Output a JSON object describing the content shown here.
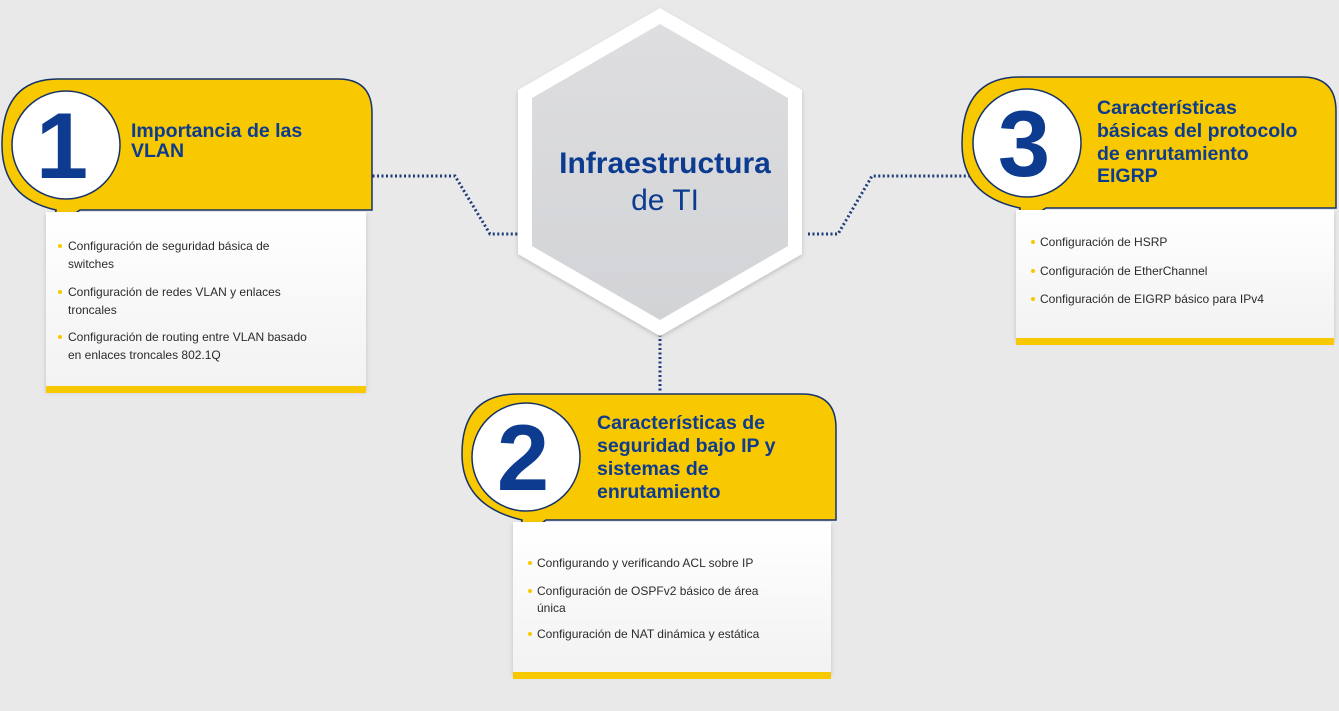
{
  "hub": {
    "title": "Infraestructura",
    "subtitle": "de TI"
  },
  "topics": [
    {
      "number": "1",
      "heading": [
        "Importancia de las",
        "VLAN"
      ],
      "items": [
        [
          "Configuración de seguridad básica de",
          "switches"
        ],
        [
          "Configuración de redes VLAN y enlaces",
          "troncales"
        ],
        [
          "Configuración de routing entre VLAN basado",
          "en enlaces troncales 802.1Q"
        ]
      ]
    },
    {
      "number": "2",
      "heading": [
        "Características de",
        "seguridad bajo IP y",
        "sistemas de",
        "enrutamiento"
      ],
      "items": [
        [
          "Configurando y verificando ACL sobre IP"
        ],
        [
          "Configuración de OSPFv2 básico de área",
          "única"
        ],
        [
          "Configuración de NAT dinámica y estática"
        ]
      ]
    },
    {
      "number": "3",
      "heading": [
        "Características",
        "básicas del protocolo",
        "de enrutamiento",
        "EIGRP"
      ],
      "items": [
        [
          "Configuración de HSRP"
        ],
        [
          "Configuración de EtherChannel"
        ],
        [
          "Configuración de EIGRP básico para IPv4"
        ]
      ]
    }
  ],
  "colors": {
    "accent_yellow": "#f8c800",
    "navy": "#0c3b8f",
    "background": "#e9e9e9",
    "panel": "#ffffff",
    "connector": "#1d3c78",
    "connector_faded": "#9aa4b6"
  }
}
